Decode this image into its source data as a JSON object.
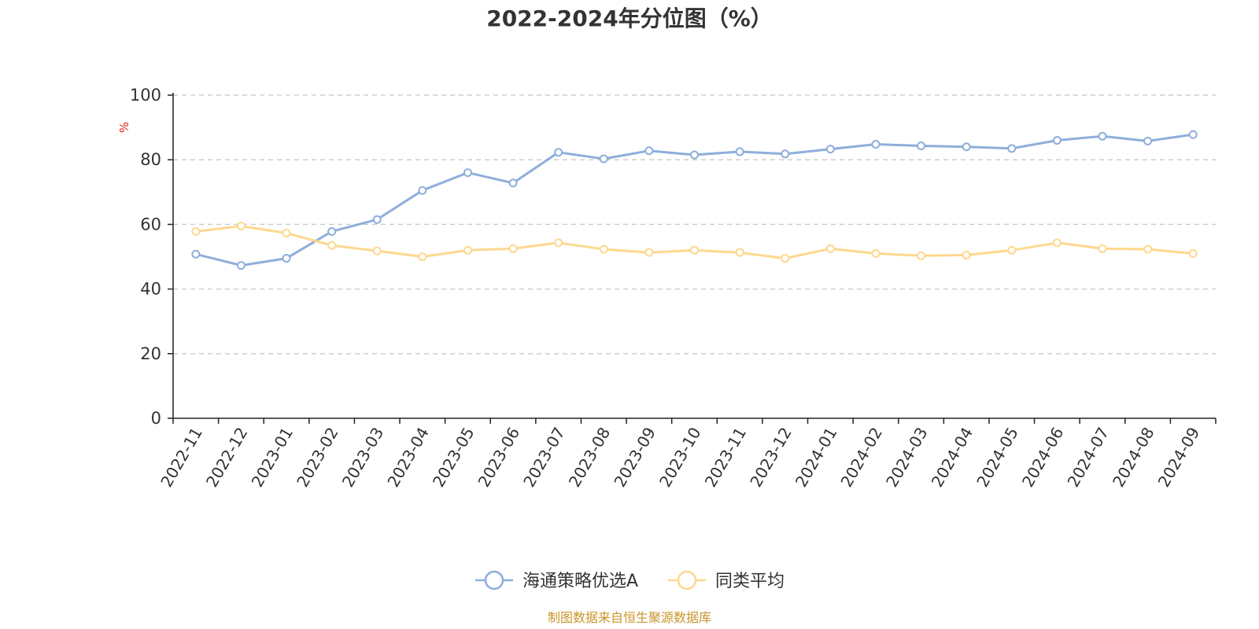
{
  "chart_data": {
    "type": "line",
    "title": "2022-2024年分位图（%）",
    "unit_label": "%",
    "x": [
      "2022-11",
      "2022-12",
      "2023-01",
      "2023-02",
      "2023-03",
      "2023-04",
      "2023-05",
      "2023-06",
      "2023-07",
      "2023-08",
      "2023-09",
      "2023-10",
      "2023-11",
      "2023-12",
      "2024-01",
      "2024-02",
      "2024-03",
      "2024-04",
      "2024-05",
      "2024-06",
      "2024-07",
      "2024-08",
      "2024-09"
    ],
    "y_ticks": [
      "0",
      "20",
      "40",
      "60",
      "80",
      "100"
    ],
    "ylim": [
      0,
      100
    ],
    "grid": true,
    "legend_position": "bottom",
    "series": [
      {
        "name": "海通策略优选A",
        "color": "#8eaedb",
        "values": [
          50.8,
          47.3,
          49.5,
          57.8,
          61.5,
          70.5,
          76.0,
          72.8,
          82.3,
          80.3,
          82.8,
          81.5,
          82.5,
          81.8,
          83.3,
          84.8,
          84.3,
          84.0,
          83.5,
          86.0,
          87.3,
          85.8,
          87.8
        ]
      },
      {
        "name": "同类平均",
        "color": "#fdd88e",
        "values": [
          57.8,
          59.5,
          57.3,
          53.5,
          51.8,
          50.0,
          52.0,
          52.5,
          54.3,
          52.3,
          51.3,
          52.0,
          51.3,
          49.5,
          52.5,
          51.0,
          50.3,
          50.5,
          52.0,
          54.3,
          52.5,
          52.3,
          51.0
        ]
      }
    ]
  },
  "source_note": "制图数据来自恒生聚源数据库"
}
